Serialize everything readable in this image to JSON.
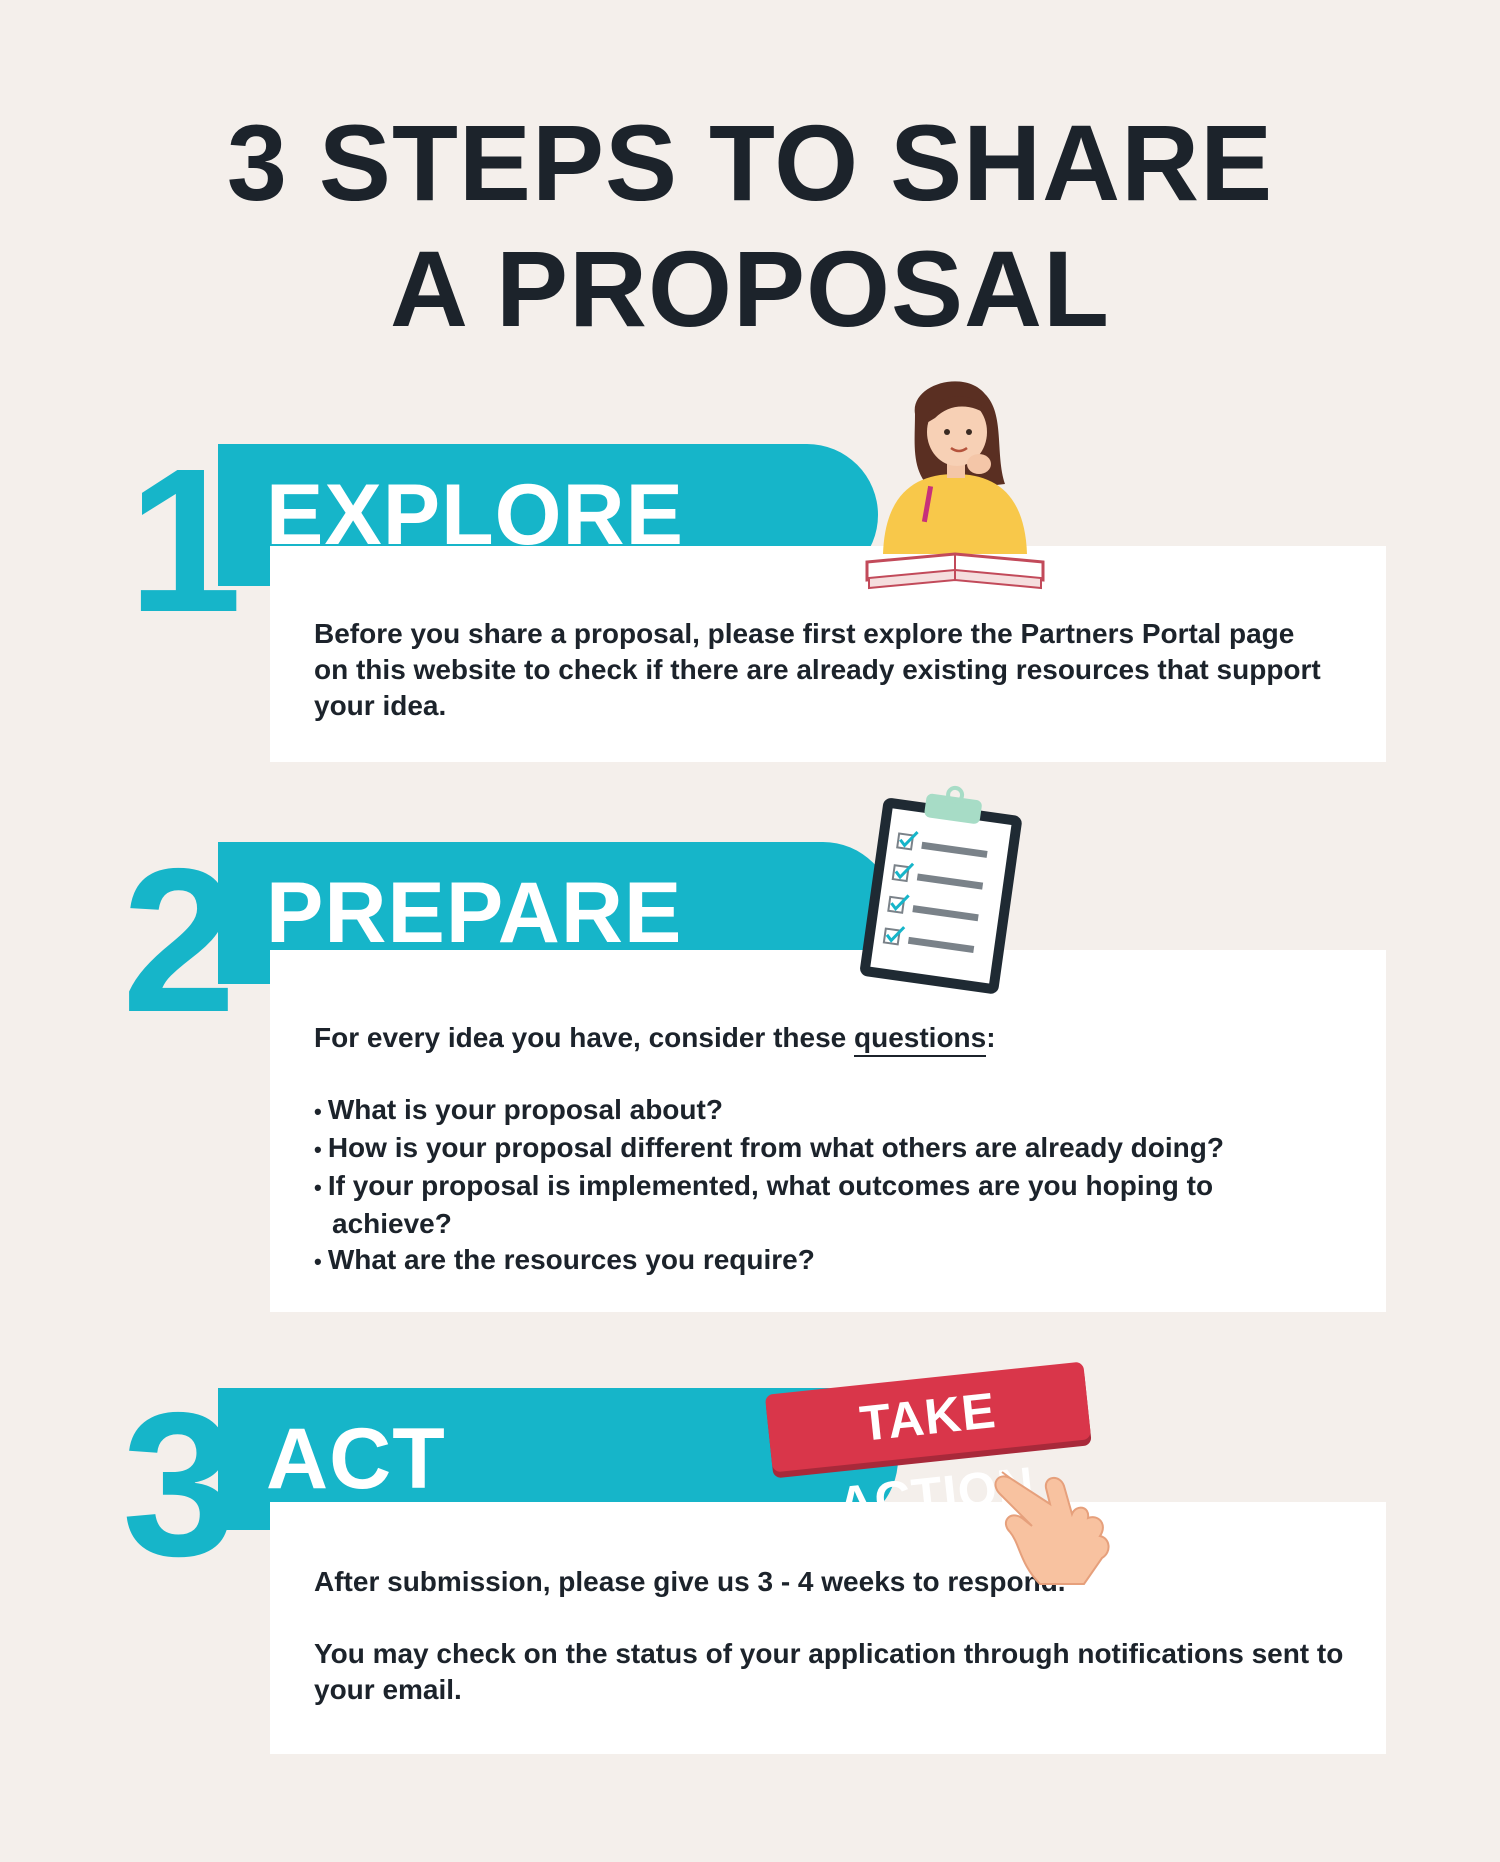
{
  "title_line1": "3 STEPS TO SHARE",
  "title_line2": "A PROPOSAL",
  "steps": [
    {
      "number": "1",
      "label": "EXPLORE",
      "text": "Before you share a proposal, please first explore the Partners Portal page on this website to check if there are already existing resources that support your idea."
    },
    {
      "number": "2",
      "label": "PREPARE",
      "intro_prefix": "For every idea you have, consider these ",
      "intro_link": "questions",
      "intro_suffix": ":",
      "questions": [
        "What is your proposal about?",
        "How is your proposal different from what others are already doing?",
        "If your proposal is implemented, what outcomes are you hoping to achieve?",
        "What are the resources you require?"
      ]
    },
    {
      "number": "3",
      "label": "ACT",
      "text1": "After submission, please give us 3 - 4 weeks to respond.",
      "text2": "You may check on the status of your application through notifications sent to your email.",
      "badge": "TAKE ACTION"
    }
  ],
  "colors": {
    "background": "#f4efeb",
    "accent": "#16b5c9",
    "text": "#1c232b",
    "badge": "#d9364a"
  },
  "icons": [
    "girl-reading-icon",
    "checklist-clipboard-icon",
    "pointing-hand-icon"
  ]
}
